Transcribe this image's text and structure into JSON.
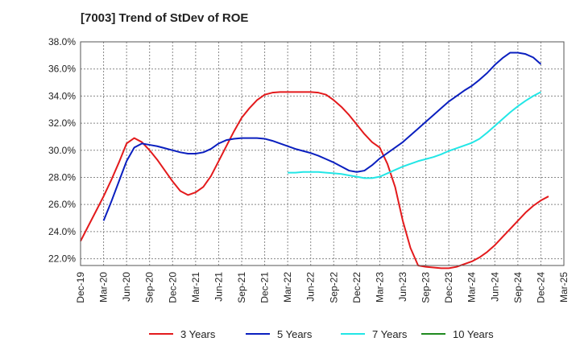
{
  "chart_data": {
    "type": "line",
    "title": "[7003]  Trend of StDev of ROE",
    "xlabel": "",
    "ylabel": "",
    "x_ticks": [
      "Dec-19",
      "Mar-20",
      "Jun-20",
      "Sep-20",
      "Dec-20",
      "Mar-21",
      "Jun-21",
      "Sep-21",
      "Dec-21",
      "Mar-22",
      "Jun-22",
      "Sep-22",
      "Dec-22",
      "Mar-23",
      "Jun-23",
      "Sep-23",
      "Dec-23",
      "Mar-24",
      "Jun-24",
      "Sep-24",
      "Dec-24",
      "Mar-25"
    ],
    "y_ticks": [
      "22.0%",
      "24.0%",
      "26.0%",
      "28.0%",
      "30.0%",
      "32.0%",
      "34.0%",
      "36.0%",
      "38.0%"
    ],
    "ylim": [
      21.5,
      38.0
    ],
    "grid": true,
    "legend_position": "bottom",
    "series": [
      {
        "name": "3 Years",
        "color": "#e31a1c",
        "points": [
          [
            "Dec-19",
            23.3
          ],
          [
            "Jan-20",
            24.4
          ],
          [
            "Feb-20",
            25.5
          ],
          [
            "Mar-20",
            26.6
          ],
          [
            "Apr-20",
            27.8
          ],
          [
            "May-20",
            29.1
          ],
          [
            "Jun-20",
            30.5
          ],
          [
            "Jul-20",
            30.9
          ],
          [
            "Aug-20",
            30.6
          ],
          [
            "Sep-20",
            30.0
          ],
          [
            "Oct-20",
            29.3
          ],
          [
            "Nov-20",
            28.5
          ],
          [
            "Dec-20",
            27.7
          ],
          [
            "Jan-21",
            27.0
          ],
          [
            "Feb-21",
            26.7
          ],
          [
            "Mar-21",
            26.9
          ],
          [
            "Apr-21",
            27.3
          ],
          [
            "May-21",
            28.1
          ],
          [
            "Jun-21",
            29.2
          ],
          [
            "Jul-21",
            30.3
          ],
          [
            "Aug-21",
            31.4
          ],
          [
            "Sep-21",
            32.4
          ],
          [
            "Oct-21",
            33.1
          ],
          [
            "Nov-21",
            33.7
          ],
          [
            "Dec-21",
            34.1
          ],
          [
            "Jan-22",
            34.25
          ],
          [
            "Feb-22",
            34.3
          ],
          [
            "Mar-22",
            34.3
          ],
          [
            "Apr-22",
            34.3
          ],
          [
            "May-22",
            34.3
          ],
          [
            "Jun-22",
            34.3
          ],
          [
            "Jul-22",
            34.25
          ],
          [
            "Aug-22",
            34.1
          ],
          [
            "Sep-22",
            33.7
          ],
          [
            "Oct-22",
            33.2
          ],
          [
            "Nov-22",
            32.6
          ],
          [
            "Dec-22",
            31.9
          ],
          [
            "Jan-23",
            31.2
          ],
          [
            "Feb-23",
            30.6
          ],
          [
            "Mar-23",
            30.2
          ],
          [
            "Apr-23",
            29.0
          ],
          [
            "May-23",
            27.3
          ],
          [
            "Jun-23",
            24.8
          ],
          [
            "Jul-23",
            22.8
          ],
          [
            "Aug-23",
            21.5
          ],
          [
            "Sep-23",
            21.4
          ],
          [
            "Oct-23",
            21.35
          ],
          [
            "Nov-23",
            21.3
          ],
          [
            "Dec-23",
            21.3
          ],
          [
            "Jan-24",
            21.4
          ],
          [
            "Feb-24",
            21.6
          ],
          [
            "Mar-24",
            21.8
          ],
          [
            "Apr-24",
            22.1
          ],
          [
            "May-24",
            22.5
          ],
          [
            "Jun-24",
            23.0
          ],
          [
            "Jul-24",
            23.6
          ],
          [
            "Aug-24",
            24.2
          ],
          [
            "Sep-24",
            24.8
          ],
          [
            "Oct-24",
            25.4
          ],
          [
            "Nov-24",
            25.9
          ],
          [
            "Dec-24",
            26.3
          ],
          [
            "Jan-25",
            26.6
          ]
        ]
      },
      {
        "name": "5 Years",
        "color": "#0a1fbf",
        "points": [
          [
            "Mar-20",
            24.8
          ],
          [
            "Apr-20",
            26.2
          ],
          [
            "May-20",
            27.7
          ],
          [
            "Jun-20",
            29.2
          ],
          [
            "Jul-20",
            30.2
          ],
          [
            "Aug-20",
            30.5
          ],
          [
            "Sep-20",
            30.4
          ],
          [
            "Oct-20",
            30.3
          ],
          [
            "Nov-20",
            30.15
          ],
          [
            "Dec-20",
            30.0
          ],
          [
            "Jan-21",
            29.85
          ],
          [
            "Feb-21",
            29.75
          ],
          [
            "Mar-21",
            29.75
          ],
          [
            "Apr-21",
            29.85
          ],
          [
            "May-21",
            30.1
          ],
          [
            "Jun-21",
            30.5
          ],
          [
            "Jul-21",
            30.75
          ],
          [
            "Aug-21",
            30.85
          ],
          [
            "Sep-21",
            30.9
          ],
          [
            "Oct-21",
            30.9
          ],
          [
            "Nov-21",
            30.9
          ],
          [
            "Dec-21",
            30.85
          ],
          [
            "Jan-22",
            30.7
          ],
          [
            "Feb-22",
            30.5
          ],
          [
            "Mar-22",
            30.3
          ],
          [
            "Apr-22",
            30.1
          ],
          [
            "May-22",
            29.95
          ],
          [
            "Jun-22",
            29.8
          ],
          [
            "Jul-22",
            29.6
          ],
          [
            "Aug-22",
            29.35
          ],
          [
            "Sep-22",
            29.1
          ],
          [
            "Oct-22",
            28.8
          ],
          [
            "Nov-22",
            28.5
          ],
          [
            "Dec-22",
            28.4
          ],
          [
            "Jan-23",
            28.5
          ],
          [
            "Feb-23",
            28.9
          ],
          [
            "Mar-23",
            29.4
          ],
          [
            "Apr-23",
            29.8
          ],
          [
            "May-23",
            30.2
          ],
          [
            "Jun-23",
            30.6
          ],
          [
            "Jul-23",
            31.1
          ],
          [
            "Aug-23",
            31.6
          ],
          [
            "Sep-23",
            32.1
          ],
          [
            "Oct-23",
            32.6
          ],
          [
            "Nov-23",
            33.1
          ],
          [
            "Dec-23",
            33.6
          ],
          [
            "Jan-24",
            34.0
          ],
          [
            "Feb-24",
            34.4
          ],
          [
            "Mar-24",
            34.75
          ],
          [
            "Apr-24",
            35.2
          ],
          [
            "May-24",
            35.7
          ],
          [
            "Jun-24",
            36.3
          ],
          [
            "Jul-24",
            36.8
          ],
          [
            "Aug-24",
            37.2
          ],
          [
            "Sep-24",
            37.2
          ],
          [
            "Oct-24",
            37.1
          ],
          [
            "Nov-24",
            36.85
          ],
          [
            "Dec-24",
            36.35
          ]
        ]
      },
      {
        "name": "7 Years",
        "color": "#22e6e6",
        "points": [
          [
            "Mar-22",
            28.35
          ],
          [
            "Apr-22",
            28.35
          ],
          [
            "May-22",
            28.4
          ],
          [
            "Jun-22",
            28.4
          ],
          [
            "Jul-22",
            28.4
          ],
          [
            "Aug-22",
            28.35
          ],
          [
            "Sep-22",
            28.3
          ],
          [
            "Oct-22",
            28.25
          ],
          [
            "Nov-22",
            28.15
          ],
          [
            "Dec-22",
            28.05
          ],
          [
            "Jan-23",
            27.95
          ],
          [
            "Feb-23",
            27.95
          ],
          [
            "Mar-23",
            28.05
          ],
          [
            "Apr-23",
            28.3
          ],
          [
            "May-23",
            28.55
          ],
          [
            "Jun-23",
            28.8
          ],
          [
            "Jul-23",
            29.0
          ],
          [
            "Aug-23",
            29.2
          ],
          [
            "Sep-23",
            29.35
          ],
          [
            "Oct-23",
            29.5
          ],
          [
            "Nov-23",
            29.7
          ],
          [
            "Dec-23",
            29.95
          ],
          [
            "Jan-24",
            30.15
          ],
          [
            "Feb-24",
            30.35
          ],
          [
            "Mar-24",
            30.55
          ],
          [
            "Apr-24",
            30.85
          ],
          [
            "May-24",
            31.3
          ],
          [
            "Jun-24",
            31.8
          ],
          [
            "Jul-24",
            32.3
          ],
          [
            "Aug-24",
            32.8
          ],
          [
            "Sep-24",
            33.25
          ],
          [
            "Oct-24",
            33.65
          ],
          [
            "Nov-24",
            34.0
          ],
          [
            "Dec-24",
            34.3
          ]
        ]
      },
      {
        "name": "10 Years",
        "color": "#1f8a1f",
        "points": []
      }
    ]
  }
}
